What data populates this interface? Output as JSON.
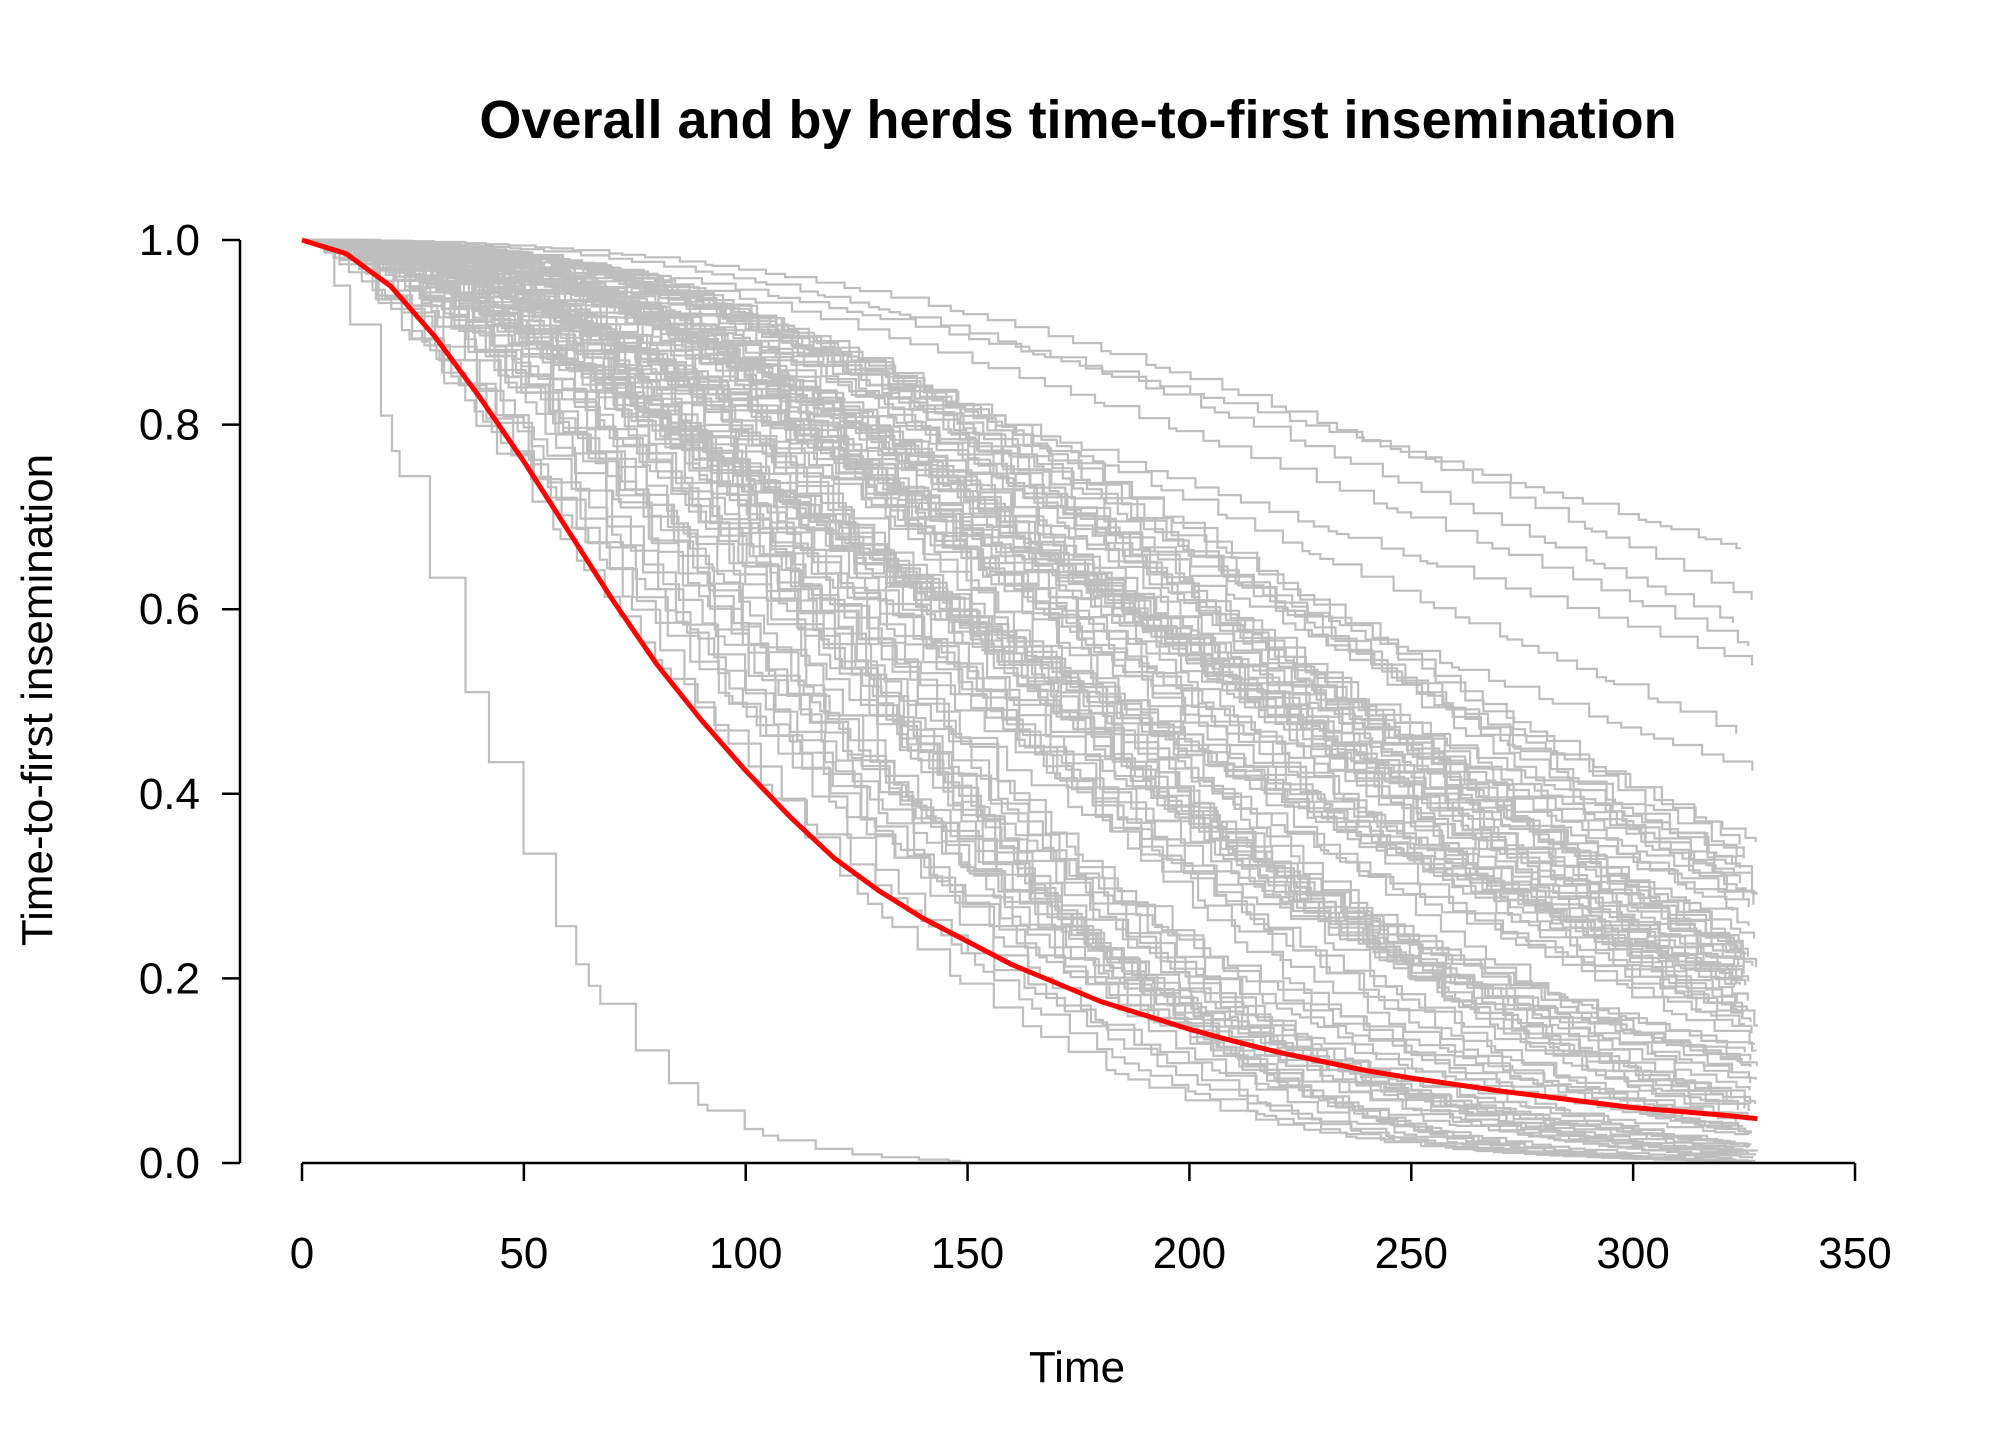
{
  "chart_data": {
    "type": "line",
    "title": "Overall and by herds time-to-first insemination",
    "xlabel": "Time",
    "ylabel": "Time-to-first insemination",
    "xlim": [
      0,
      350
    ],
    "ylim": [
      0,
      1
    ],
    "x_ticks": [
      0,
      50,
      100,
      150,
      200,
      250,
      300,
      350
    ],
    "y_ticks": [
      "0.0",
      "0.2",
      "0.4",
      "0.6",
      "0.8",
      "1.0"
    ],
    "grid": false,
    "legend": "none",
    "colors": {
      "overall": "#ff0000",
      "herds": "#bebebe"
    },
    "overall_curve": {
      "x": [
        0,
        10,
        20,
        30,
        40,
        50,
        60,
        70,
        80,
        90,
        100,
        110,
        120,
        130,
        140,
        150,
        160,
        170,
        180,
        190,
        200,
        210,
        220,
        230,
        240,
        250,
        260,
        270,
        280,
        290,
        300,
        310,
        320,
        328
      ],
      "y": [
        1.0,
        0.985,
        0.95,
        0.895,
        0.83,
        0.76,
        0.685,
        0.61,
        0.54,
        0.48,
        0.425,
        0.375,
        0.33,
        0.295,
        0.265,
        0.24,
        0.215,
        0.195,
        0.175,
        0.16,
        0.145,
        0.132,
        0.12,
        0.11,
        0.1,
        0.092,
        0.085,
        0.078,
        0.072,
        0.066,
        0.06,
        0.056,
        0.052,
        0.048
      ]
    },
    "herd_curves": {
      "count": 110,
      "x_end": 328,
      "example_end_values": [
        0.665,
        0.61,
        0.585,
        0.56,
        0.54,
        0.465,
        0.425,
        0.345,
        0.28,
        0.19,
        0.175,
        0.165,
        0.12,
        0.105,
        0.09,
        0.07,
        0.05,
        0.03,
        0.02,
        0.0
      ]
    }
  }
}
